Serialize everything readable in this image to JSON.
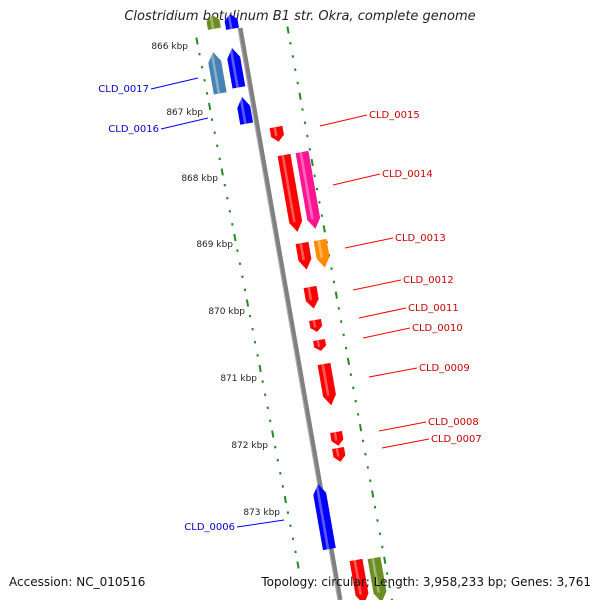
{
  "title": "Clostridium botulinum B1 str. Okra, complete genome",
  "footer": {
    "accession": "Accession: NC_010516",
    "topology": "Topology: circular; Length: 3,958,233 bp; Genes: 3,761"
  },
  "colors": {
    "forward_gene": "#ff0000",
    "reverse_gene": "#0000ff",
    "steel_gene": "#4682b4",
    "pink_gene": "#ff1493",
    "orange_gene": "#ff8c00",
    "olive_gene": "#6b8e23",
    "backbone": "#808080",
    "tick": "#228b22"
  },
  "scale_labels": [
    "866 kbp",
    "867 kbp",
    "868 kbp",
    "869 kbp",
    "870 kbp",
    "871 kbp",
    "872 kbp",
    "873 kbp"
  ],
  "gene_labels_right": [
    "CLD_0015",
    "CLD_0014",
    "CLD_0013",
    "CLD_0012",
    "CLD_0011",
    "CLD_0010",
    "CLD_0009",
    "CLD_0008",
    "CLD_0007"
  ],
  "gene_labels_left": [
    "CLD_0017",
    "CLD_0016",
    "CLD_0006"
  ]
}
